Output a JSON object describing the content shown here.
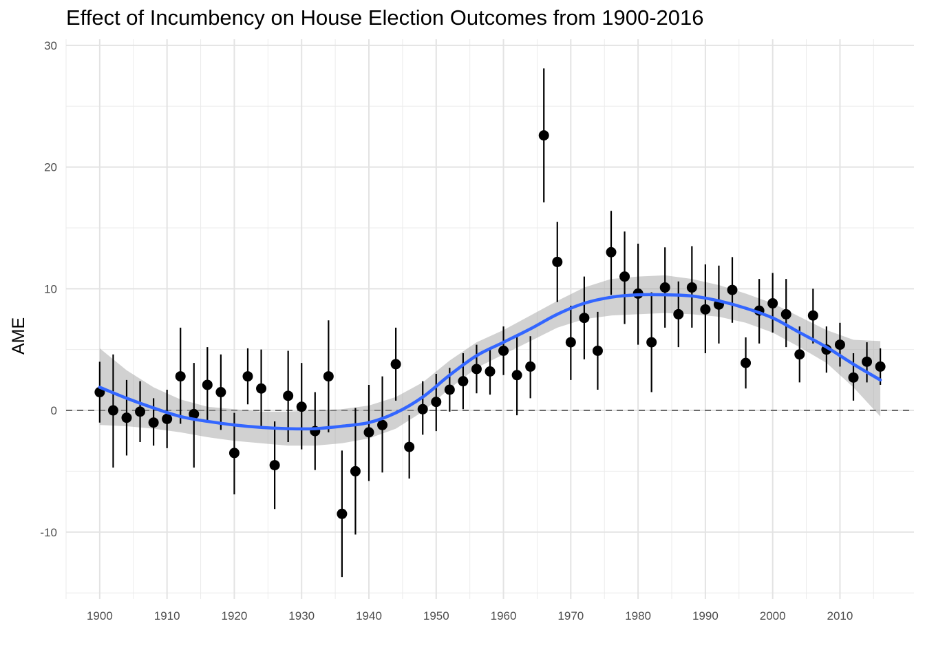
{
  "chart_data": {
    "type": "scatter",
    "title": "Effect of Incumbency on House Election Outcomes from 1900-2016",
    "xlabel": "",
    "ylabel": "AME",
    "xlim": [
      1895,
      2021
    ],
    "ylim": [
      -15.5,
      30.5
    ],
    "x_ticks": [
      1900,
      1910,
      1920,
      1930,
      1940,
      1950,
      1960,
      1970,
      1980,
      1990,
      2000,
      2010
    ],
    "y_ticks": [
      -10,
      0,
      10,
      20,
      30
    ],
    "grid": true,
    "reference_line": 0,
    "series": [
      {
        "type": "point_errorbar",
        "points": [
          {
            "x": 1900,
            "y": 1.5,
            "lo": -1.0,
            "hi": 4.0
          },
          {
            "x": 1902,
            "y": 0.0,
            "lo": -4.7,
            "hi": 4.6
          },
          {
            "x": 1904,
            "y": -0.6,
            "lo": -3.7,
            "hi": 2.5
          },
          {
            "x": 1906,
            "y": -0.1,
            "lo": -2.6,
            "hi": 2.4
          },
          {
            "x": 1908,
            "y": -1.0,
            "lo": -2.9,
            "hi": 1.0
          },
          {
            "x": 1910,
            "y": -0.7,
            "lo": -3.1,
            "hi": 1.7
          },
          {
            "x": 1912,
            "y": 2.8,
            "lo": -1.1,
            "hi": 6.8
          },
          {
            "x": 1914,
            "y": -0.3,
            "lo": -4.7,
            "hi": 3.9
          },
          {
            "x": 1916,
            "y": 2.1,
            "lo": -1.0,
            "hi": 5.2
          },
          {
            "x": 1918,
            "y": 1.5,
            "lo": -1.6,
            "hi": 4.6
          },
          {
            "x": 1920,
            "y": -3.5,
            "lo": -6.9,
            "hi": -0.2
          },
          {
            "x": 1922,
            "y": 2.8,
            "lo": 0.5,
            "hi": 5.1
          },
          {
            "x": 1924,
            "y": 1.8,
            "lo": -1.4,
            "hi": 5.0
          },
          {
            "x": 1926,
            "y": -4.5,
            "lo": -8.1,
            "hi": -0.9
          },
          {
            "x": 1928,
            "y": 1.2,
            "lo": -2.6,
            "hi": 4.9
          },
          {
            "x": 1930,
            "y": 0.3,
            "lo": -3.2,
            "hi": 3.9
          },
          {
            "x": 1932,
            "y": -1.7,
            "lo": -4.9,
            "hi": 1.5
          },
          {
            "x": 1934,
            "y": 2.8,
            "lo": -1.8,
            "hi": 7.4
          },
          {
            "x": 1936,
            "y": -8.5,
            "lo": -13.7,
            "hi": -3.3
          },
          {
            "x": 1938,
            "y": -5.0,
            "lo": -10.2,
            "hi": 0.2
          },
          {
            "x": 1940,
            "y": -1.8,
            "lo": -5.8,
            "hi": 2.1
          },
          {
            "x": 1942,
            "y": -1.2,
            "lo": -5.1,
            "hi": 2.8
          },
          {
            "x": 1944,
            "y": 3.8,
            "lo": 0.8,
            "hi": 6.8
          },
          {
            "x": 1946,
            "y": -3.0,
            "lo": -5.6,
            "hi": -0.4
          },
          {
            "x": 1948,
            "y": 0.1,
            "lo": -2.0,
            "hi": 2.4
          },
          {
            "x": 1950,
            "y": 0.7,
            "lo": -1.7,
            "hi": 3.0
          },
          {
            "x": 1952,
            "y": 1.7,
            "lo": -0.1,
            "hi": 3.5
          },
          {
            "x": 1954,
            "y": 2.4,
            "lo": 0.1,
            "hi": 4.7
          },
          {
            "x": 1956,
            "y": 3.4,
            "lo": 1.4,
            "hi": 5.4
          },
          {
            "x": 1958,
            "y": 3.2,
            "lo": 1.3,
            "hi": 5.0
          },
          {
            "x": 1960,
            "y": 4.9,
            "lo": 2.9,
            "hi": 6.9
          },
          {
            "x": 1962,
            "y": 2.9,
            "lo": -0.4,
            "hi": 6.2
          },
          {
            "x": 1964,
            "y": 3.6,
            "lo": 1.0,
            "hi": 6.1
          },
          {
            "x": 1966,
            "y": 22.6,
            "lo": 17.1,
            "hi": 28.1
          },
          {
            "x": 1968,
            "y": 12.2,
            "lo": 8.9,
            "hi": 15.5
          },
          {
            "x": 1970,
            "y": 5.6,
            "lo": 2.5,
            "hi": 8.6
          },
          {
            "x": 1972,
            "y": 7.6,
            "lo": 4.2,
            "hi": 11.0
          },
          {
            "x": 1974,
            "y": 4.9,
            "lo": 1.7,
            "hi": 8.1
          },
          {
            "x": 1976,
            "y": 13.0,
            "lo": 9.5,
            "hi": 16.4
          },
          {
            "x": 1978,
            "y": 11.0,
            "lo": 7.1,
            "hi": 14.7
          },
          {
            "x": 1980,
            "y": 9.6,
            "lo": 5.4,
            "hi": 13.7
          },
          {
            "x": 1982,
            "y": 5.6,
            "lo": 1.5,
            "hi": 9.7
          },
          {
            "x": 1984,
            "y": 10.1,
            "lo": 6.8,
            "hi": 13.4
          },
          {
            "x": 1986,
            "y": 7.9,
            "lo": 5.2,
            "hi": 10.6
          },
          {
            "x": 1988,
            "y": 10.1,
            "lo": 6.8,
            "hi": 13.5
          },
          {
            "x": 1990,
            "y": 8.3,
            "lo": 4.7,
            "hi": 12.0
          },
          {
            "x": 1992,
            "y": 8.7,
            "lo": 5.5,
            "hi": 11.9
          },
          {
            "x": 1994,
            "y": 9.9,
            "lo": 7.2,
            "hi": 12.6
          },
          {
            "x": 1996,
            "y": 3.9,
            "lo": 1.8,
            "hi": 6.0
          },
          {
            "x": 1998,
            "y": 8.2,
            "lo": 5.5,
            "hi": 10.8
          },
          {
            "x": 2000,
            "y": 8.8,
            "lo": 6.4,
            "hi": 11.3
          },
          {
            "x": 2002,
            "y": 7.9,
            "lo": 5.2,
            "hi": 10.8
          },
          {
            "x": 2004,
            "y": 4.6,
            "lo": 2.3,
            "hi": 6.9
          },
          {
            "x": 2006,
            "y": 7.8,
            "lo": 5.5,
            "hi": 10.0
          },
          {
            "x": 2008,
            "y": 5.0,
            "lo": 3.1,
            "hi": 6.9
          },
          {
            "x": 2010,
            "y": 5.4,
            "lo": 3.6,
            "hi": 7.2
          },
          {
            "x": 2012,
            "y": 2.7,
            "lo": 0.8,
            "hi": 4.7
          },
          {
            "x": 2014,
            "y": 4.0,
            "lo": 2.3,
            "hi": 5.6
          },
          {
            "x": 2016,
            "y": 3.6,
            "lo": 2.1,
            "hi": 5.1
          }
        ]
      },
      {
        "type": "smooth",
        "color": "#3366ff",
        "band_color": "#999999",
        "points": [
          {
            "x": 1900,
            "y": 1.9,
            "lo": -1.2,
            "hi": 5.1
          },
          {
            "x": 1904,
            "y": 1.0,
            "lo": -1.3,
            "hi": 3.3
          },
          {
            "x": 1908,
            "y": 0.2,
            "lo": -1.5,
            "hi": 1.9
          },
          {
            "x": 1912,
            "y": -0.5,
            "lo": -1.8,
            "hi": 0.9
          },
          {
            "x": 1916,
            "y": -0.9,
            "lo": -2.2,
            "hi": 0.3
          },
          {
            "x": 1920,
            "y": -1.2,
            "lo": -2.5,
            "hi": 0.1
          },
          {
            "x": 1924,
            "y": -1.4,
            "lo": -2.7,
            "hi": -0.1
          },
          {
            "x": 1928,
            "y": -1.5,
            "lo": -2.9,
            "hi": -0.1
          },
          {
            "x": 1932,
            "y": -1.5,
            "lo": -2.9,
            "hi": 0.0
          },
          {
            "x": 1936,
            "y": -1.3,
            "lo": -2.7,
            "hi": 0.1
          },
          {
            "x": 1940,
            "y": -1.0,
            "lo": -2.3,
            "hi": 0.4
          },
          {
            "x": 1944,
            "y": -0.2,
            "lo": -1.5,
            "hi": 1.1
          },
          {
            "x": 1948,
            "y": 1.1,
            "lo": -0.1,
            "hi": 2.3
          },
          {
            "x": 1952,
            "y": 2.9,
            "lo": 1.8,
            "hi": 4.1
          },
          {
            "x": 1956,
            "y": 4.5,
            "lo": 3.5,
            "hi": 5.6
          },
          {
            "x": 1960,
            "y": 5.6,
            "lo": 4.6,
            "hi": 6.6
          },
          {
            "x": 1964,
            "y": 6.7,
            "lo": 5.7,
            "hi": 7.8
          },
          {
            "x": 1968,
            "y": 7.9,
            "lo": 6.8,
            "hi": 9.0
          },
          {
            "x": 1972,
            "y": 8.8,
            "lo": 7.5,
            "hi": 10.1
          },
          {
            "x": 1976,
            "y": 9.3,
            "lo": 7.8,
            "hi": 10.8
          },
          {
            "x": 1980,
            "y": 9.5,
            "lo": 7.9,
            "hi": 11.0
          },
          {
            "x": 1984,
            "y": 9.5,
            "lo": 8.0,
            "hi": 11.1
          },
          {
            "x": 1988,
            "y": 9.4,
            "lo": 7.9,
            "hi": 10.8
          },
          {
            "x": 1992,
            "y": 9.0,
            "lo": 7.7,
            "hi": 10.3
          },
          {
            "x": 1996,
            "y": 8.4,
            "lo": 7.2,
            "hi": 9.6
          },
          {
            "x": 2000,
            "y": 7.6,
            "lo": 6.4,
            "hi": 8.8
          },
          {
            "x": 2004,
            "y": 6.4,
            "lo": 5.2,
            "hi": 7.7
          },
          {
            "x": 2008,
            "y": 5.2,
            "lo": 3.9,
            "hi": 6.6
          },
          {
            "x": 2012,
            "y": 3.8,
            "lo": 1.9,
            "hi": 5.8
          },
          {
            "x": 2016,
            "y": 2.5,
            "lo": -0.5,
            "hi": 5.7
          }
        ]
      }
    ]
  }
}
